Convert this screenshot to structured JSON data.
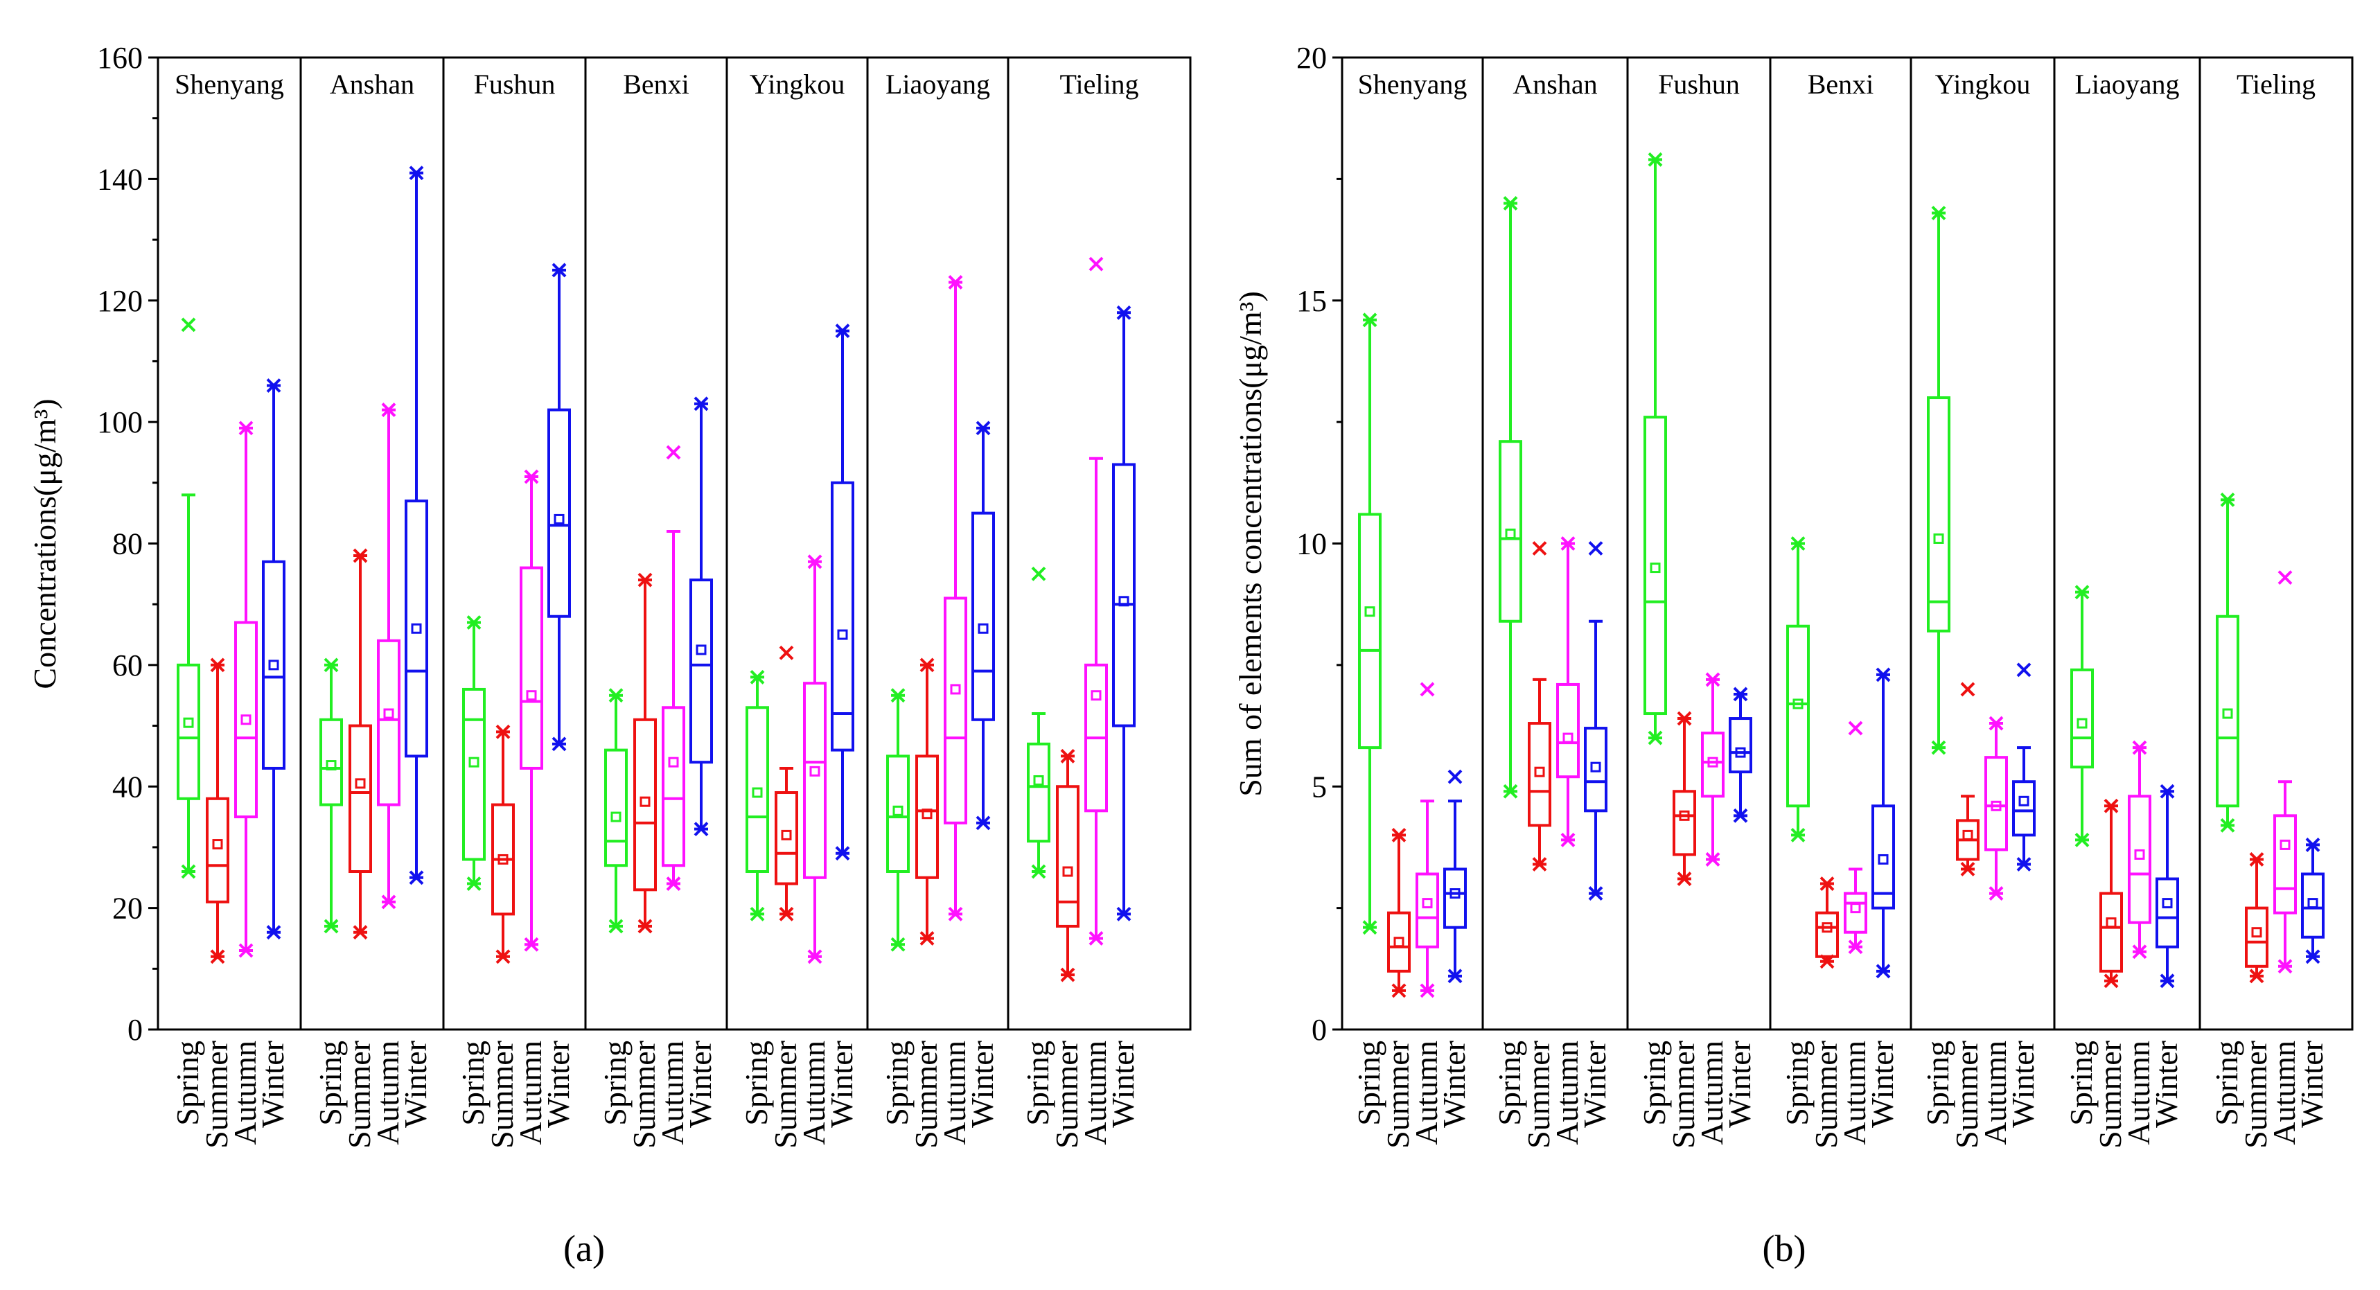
{
  "season_colors": {
    "Spring": "#22ee22",
    "Summer": "#ee1111",
    "Autumn": "#ff11ff",
    "Winter": "#1111ee"
  },
  "chart_data": [
    {
      "type": "box",
      "panel_label": "(a)",
      "ylabel": "Concentrations(μg/m³)",
      "ylim": [
        0,
        160
      ],
      "yticks": [
        0,
        20,
        40,
        60,
        80,
        100,
        120,
        140,
        160
      ],
      "seasons": [
        "Spring",
        "Summer",
        "Autumn",
        "Winter"
      ],
      "cities": [
        {
          "name": "Shenyang",
          "boxes": [
            {
              "q1": 38,
              "median": 48,
              "q3": 60,
              "mean": 50.5,
              "wlo": 26,
              "whi": 88,
              "xmin": 26,
              "xmax": 116
            },
            {
              "q1": 21,
              "median": 27,
              "q3": 38,
              "mean": 30.5,
              "wlo": 12,
              "whi": 60,
              "xmin": 12,
              "xmax": 60
            },
            {
              "q1": 35,
              "median": 48,
              "q3": 67,
              "mean": 51,
              "wlo": 13,
              "whi": 99,
              "xmin": 13,
              "xmax": 99
            },
            {
              "q1": 43,
              "median": 58,
              "q3": 77,
              "mean": 60,
              "wlo": 16,
              "whi": 106,
              "xmin": 16,
              "xmax": 106
            }
          ]
        },
        {
          "name": "Anshan",
          "boxes": [
            {
              "q1": 37,
              "median": 43,
              "q3": 51,
              "mean": 43.5,
              "wlo": 17,
              "whi": 60,
              "xmin": 17,
              "xmax": 60
            },
            {
              "q1": 26,
              "median": 39,
              "q3": 50,
              "mean": 40.5,
              "wlo": 16,
              "whi": 78,
              "xmin": 16,
              "xmax": 78
            },
            {
              "q1": 37,
              "median": 51,
              "q3": 64,
              "mean": 52,
              "wlo": 21,
              "whi": 102,
              "xmin": 21,
              "xmax": 102
            },
            {
              "q1": 45,
              "median": 59,
              "q3": 87,
              "mean": 66,
              "wlo": 25,
              "whi": 141,
              "xmin": 25,
              "xmax": 141
            }
          ]
        },
        {
          "name": "Fushun",
          "boxes": [
            {
              "q1": 28,
              "median": 51,
              "q3": 56,
              "mean": 44,
              "wlo": 24,
              "whi": 67,
              "xmin": 24,
              "xmax": 67
            },
            {
              "q1": 19,
              "median": 28,
              "q3": 37,
              "mean": 28,
              "wlo": 12,
              "whi": 49,
              "xmin": 12,
              "xmax": 49
            },
            {
              "q1": 43,
              "median": 54,
              "q3": 76,
              "mean": 55,
              "wlo": 14,
              "whi": 91,
              "xmin": 14,
              "xmax": 91
            },
            {
              "q1": 68,
              "median": 83,
              "q3": 102,
              "mean": 84,
              "wlo": 47,
              "whi": 125,
              "xmin": 47,
              "xmax": 125
            }
          ]
        },
        {
          "name": "Benxi",
          "boxes": [
            {
              "q1": 27,
              "median": 31,
              "q3": 46,
              "mean": 35,
              "wlo": 17,
              "whi": 55,
              "xmin": 17,
              "xmax": 55
            },
            {
              "q1": 23,
              "median": 34,
              "q3": 51,
              "mean": 37.5,
              "wlo": 17,
              "whi": 74,
              "xmin": 17,
              "xmax": 74
            },
            {
              "q1": 27,
              "median": 38,
              "q3": 53,
              "mean": 44,
              "wlo": 24,
              "whi": 82,
              "xmin": 24,
              "xmax": 95
            },
            {
              "q1": 44,
              "median": 60,
              "q3": 74,
              "mean": 62.5,
              "wlo": 33,
              "whi": 103,
              "xmin": 33,
              "xmax": 103
            }
          ]
        },
        {
          "name": "Yingkou",
          "boxes": [
            {
              "q1": 26,
              "median": 35,
              "q3": 53,
              "mean": 39,
              "wlo": 19,
              "whi": 58,
              "xmin": 19,
              "xmax": 58
            },
            {
              "q1": 24,
              "median": 29,
              "q3": 39,
              "mean": 32,
              "wlo": 19,
              "whi": 43,
              "xmin": 19,
              "xmax": 62
            },
            {
              "q1": 25,
              "median": 44,
              "q3": 57,
              "mean": 42.5,
              "wlo": 12,
              "whi": 77,
              "xmin": 12,
              "xmax": 77
            },
            {
              "q1": 46,
              "median": 52,
              "q3": 90,
              "mean": 65,
              "wlo": 29,
              "whi": 115,
              "xmin": 29,
              "xmax": 115
            }
          ]
        },
        {
          "name": "Liaoyang",
          "boxes": [
            {
              "q1": 26,
              "median": 35,
              "q3": 45,
              "mean": 36,
              "wlo": 14,
              "whi": 55,
              "xmin": 14,
              "xmax": 55
            },
            {
              "q1": 25,
              "median": 36,
              "q3": 45,
              "mean": 35.5,
              "wlo": 15,
              "whi": 60,
              "xmin": 15,
              "xmax": 60
            },
            {
              "q1": 34,
              "median": 48,
              "q3": 71,
              "mean": 56,
              "wlo": 19,
              "whi": 123,
              "xmin": 19,
              "xmax": 123
            },
            {
              "q1": 51,
              "median": 59,
              "q3": 85,
              "mean": 66,
              "wlo": 34,
              "whi": 99,
              "xmin": 34,
              "xmax": 99
            }
          ]
        },
        {
          "name": "Tieling",
          "boxes": [
            {
              "q1": 31,
              "median": 40,
              "q3": 47,
              "mean": 41,
              "wlo": 26,
              "whi": 52,
              "xmin": 26,
              "xmax": 75
            },
            {
              "q1": 17,
              "median": 21,
              "q3": 40,
              "mean": 26,
              "wlo": 9,
              "whi": 45,
              "xmin": 9,
              "xmax": 45
            },
            {
              "q1": 36,
              "median": 48,
              "q3": 60,
              "mean": 55,
              "wlo": 15,
              "whi": 94,
              "xmin": 15,
              "xmax": 126
            },
            {
              "q1": 50,
              "median": 70,
              "q3": 93,
              "mean": 70.5,
              "wlo": 19,
              "whi": 118,
              "xmin": 19,
              "xmax": 118
            }
          ]
        }
      ]
    },
    {
      "type": "box",
      "panel_label": "(b)",
      "ylabel": "Sum of elements concentrations(μg/m³)",
      "ylim": [
        0,
        20
      ],
      "yticks": [
        0,
        5,
        10,
        15,
        20
      ],
      "seasons": [
        "Spring",
        "Summer",
        "Autumn",
        "Winter"
      ],
      "cities": [
        {
          "name": "Shenyang",
          "boxes": [
            {
              "q1": 5.8,
              "median": 7.8,
              "q3": 10.6,
              "mean": 8.6,
              "wlo": 2.1,
              "whi": 14.6,
              "xmin": 2.1,
              "xmax": 14.6
            },
            {
              "q1": 1.2,
              "median": 1.7,
              "q3": 2.4,
              "mean": 1.8,
              "wlo": 0.8,
              "whi": 4.0,
              "xmin": 0.8,
              "xmax": 4.0
            },
            {
              "q1": 1.7,
              "median": 2.3,
              "q3": 3.2,
              "mean": 2.6,
              "wlo": 0.8,
              "whi": 4.7,
              "xmin": 0.8,
              "xmax": 7.0
            },
            {
              "q1": 2.1,
              "median": 2.8,
              "q3": 3.3,
              "mean": 2.8,
              "wlo": 1.1,
              "whi": 4.7,
              "xmin": 1.1,
              "xmax": 5.2
            }
          ]
        },
        {
          "name": "Anshan",
          "boxes": [
            {
              "q1": 8.4,
              "median": 10.1,
              "q3": 12.1,
              "mean": 10.2,
              "wlo": 4.9,
              "whi": 17.0,
              "xmin": 4.9,
              "xmax": 17.0
            },
            {
              "q1": 4.2,
              "median": 4.9,
              "q3": 6.3,
              "mean": 5.3,
              "wlo": 3.4,
              "whi": 7.2,
              "xmin": 3.4,
              "xmax": 9.9
            },
            {
              "q1": 5.2,
              "median": 5.9,
              "q3": 7.1,
              "mean": 6.0,
              "wlo": 3.9,
              "whi": 10.0,
              "xmin": 3.9,
              "xmax": 10.0
            },
            {
              "q1": 4.5,
              "median": 5.1,
              "q3": 6.2,
              "mean": 5.4,
              "wlo": 2.8,
              "whi": 8.4,
              "xmin": 2.8,
              "xmax": 9.9
            }
          ]
        },
        {
          "name": "Fushun",
          "boxes": [
            {
              "q1": 6.5,
              "median": 8.8,
              "q3": 12.6,
              "mean": 9.5,
              "wlo": 6.0,
              "whi": 17.9,
              "xmin": 6.0,
              "xmax": 17.9
            },
            {
              "q1": 3.6,
              "median": 4.4,
              "q3": 4.9,
              "mean": 4.4,
              "wlo": 3.1,
              "whi": 6.4,
              "xmin": 3.1,
              "xmax": 6.4
            },
            {
              "q1": 4.8,
              "median": 5.5,
              "q3": 6.1,
              "mean": 5.5,
              "wlo": 3.5,
              "whi": 7.2,
              "xmin": 3.5,
              "xmax": 7.2
            },
            {
              "q1": 5.3,
              "median": 5.7,
              "q3": 6.4,
              "mean": 5.7,
              "wlo": 4.4,
              "whi": 6.9,
              "xmin": 4.4,
              "xmax": 6.9
            }
          ]
        },
        {
          "name": "Benxi",
          "boxes": [
            {
              "q1": 4.6,
              "median": 6.7,
              "q3": 8.3,
              "mean": 6.7,
              "wlo": 4.0,
              "whi": 10.0,
              "xmin": 4.0,
              "xmax": 10.0
            },
            {
              "q1": 1.5,
              "median": 2.1,
              "q3": 2.4,
              "mean": 2.1,
              "wlo": 1.4,
              "whi": 3.0,
              "xmin": 1.4,
              "xmax": 3.0
            },
            {
              "q1": 2.0,
              "median": 2.6,
              "q3": 2.8,
              "mean": 2.5,
              "wlo": 1.7,
              "whi": 3.3,
              "xmin": 1.7,
              "xmax": 6.2
            },
            {
              "q1": 2.5,
              "median": 2.8,
              "q3": 4.6,
              "mean": 3.5,
              "wlo": 1.2,
              "whi": 7.3,
              "xmin": 1.2,
              "xmax": 7.3
            }
          ]
        },
        {
          "name": "Yingkou",
          "boxes": [
            {
              "q1": 8.2,
              "median": 8.8,
              "q3": 13.0,
              "mean": 10.1,
              "wlo": 5.8,
              "whi": 16.8,
              "xmin": 5.8,
              "xmax": 16.8
            },
            {
              "q1": 3.5,
              "median": 3.9,
              "q3": 4.3,
              "mean": 4.0,
              "wlo": 3.3,
              "whi": 4.8,
              "xmin": 3.3,
              "xmax": 7.0
            },
            {
              "q1": 3.7,
              "median": 4.6,
              "q3": 5.6,
              "mean": 4.6,
              "wlo": 2.8,
              "whi": 6.3,
              "xmin": 2.8,
              "xmax": 6.3
            },
            {
              "q1": 4.0,
              "median": 4.5,
              "q3": 5.1,
              "mean": 4.7,
              "wlo": 3.4,
              "whi": 5.8,
              "xmin": 3.4,
              "xmax": 7.4
            }
          ]
        },
        {
          "name": "Liaoyang",
          "boxes": [
            {
              "q1": 5.4,
              "median": 6.0,
              "q3": 7.4,
              "mean": 6.3,
              "wlo": 3.9,
              "whi": 9.0,
              "xmin": 3.9,
              "xmax": 9.0
            },
            {
              "q1": 1.2,
              "median": 2.1,
              "q3": 2.8,
              "mean": 2.2,
              "wlo": 1.0,
              "whi": 4.6,
              "xmin": 1.0,
              "xmax": 4.6
            },
            {
              "q1": 2.2,
              "median": 3.2,
              "q3": 4.8,
              "mean": 3.6,
              "wlo": 1.6,
              "whi": 5.8,
              "xmin": 1.6,
              "xmax": 5.8
            },
            {
              "q1": 1.7,
              "median": 2.3,
              "q3": 3.1,
              "mean": 2.6,
              "wlo": 1.0,
              "whi": 4.9,
              "xmin": 1.0,
              "xmax": 4.9
            }
          ]
        },
        {
          "name": "Tieling",
          "boxes": [
            {
              "q1": 4.6,
              "median": 6.0,
              "q3": 8.5,
              "mean": 6.5,
              "wlo": 4.2,
              "whi": 10.9,
              "xmin": 4.2,
              "xmax": 10.9
            },
            {
              "q1": 1.3,
              "median": 1.8,
              "q3": 2.5,
              "mean": 2.0,
              "wlo": 1.1,
              "whi": 3.5,
              "xmin": 1.1,
              "xmax": 3.5
            },
            {
              "q1": 2.4,
              "median": 2.9,
              "q3": 4.4,
              "mean": 3.8,
              "wlo": 1.3,
              "whi": 5.1,
              "xmin": 1.3,
              "xmax": 9.3
            },
            {
              "q1": 1.9,
              "median": 2.5,
              "q3": 3.2,
              "mean": 2.6,
              "wlo": 1.5,
              "whi": 3.8,
              "xmin": 1.5,
              "xmax": 3.8
            }
          ]
        }
      ]
    }
  ]
}
